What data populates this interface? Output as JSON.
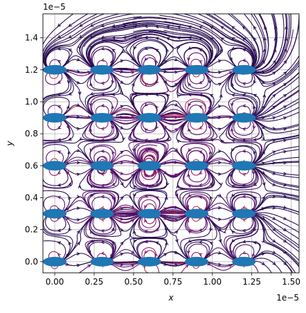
{
  "chart_data": {
    "type": "streamplot",
    "title": "",
    "xlabel": "x",
    "ylabel": "y",
    "x_scale_label": "1e−5",
    "y_scale_label": "1e−5",
    "xlim": [
      -0.075,
      1.55
    ],
    "ylim": [
      -0.07,
      1.55
    ],
    "x_ticks": [
      0.0,
      0.25,
      0.5,
      0.75,
      1.0,
      1.25,
      1.5
    ],
    "y_ticks": [
      0.0,
      0.2,
      0.4,
      0.6,
      0.8,
      1.0,
      1.2,
      1.4
    ],
    "x_tick_labels": [
      "0.00",
      "0.25",
      "0.50",
      "0.75",
      "1.00",
      "1.25",
      "1.50"
    ],
    "y_tick_labels": [
      "0.0",
      "0.2",
      "0.4",
      "0.6",
      "0.8",
      "1.0",
      "1.2",
      "1.4"
    ],
    "grid": true,
    "ellipse_color": "#1f77b4",
    "ellipse_width": 0.15,
    "ellipse_height": 0.06,
    "ellipse_centers": [
      [
        0.0,
        0.0
      ],
      [
        0.3,
        0.0
      ],
      [
        0.6,
        0.0
      ],
      [
        0.9,
        0.0
      ],
      [
        1.2,
        0.0
      ],
      [
        0.0,
        0.3
      ],
      [
        0.3,
        0.3
      ],
      [
        0.6,
        0.3
      ],
      [
        0.9,
        0.3
      ],
      [
        1.2,
        0.3
      ],
      [
        0.0,
        0.6
      ],
      [
        0.3,
        0.6
      ],
      [
        0.6,
        0.6
      ],
      [
        0.9,
        0.6
      ],
      [
        1.2,
        0.6
      ],
      [
        0.0,
        0.9
      ],
      [
        0.3,
        0.9
      ],
      [
        0.6,
        0.9
      ],
      [
        0.9,
        0.9
      ],
      [
        1.2,
        0.9
      ],
      [
        0.0,
        1.2
      ],
      [
        0.3,
        1.2
      ],
      [
        0.6,
        1.2
      ],
      [
        0.9,
        1.2
      ],
      [
        1.2,
        1.2
      ]
    ],
    "stream_colormap": [
      "#2b0f54",
      "#5c126e",
      "#8b2269",
      "#b6365a",
      "#de4a3e",
      "#f7821b",
      "#fbb61a"
    ]
  }
}
